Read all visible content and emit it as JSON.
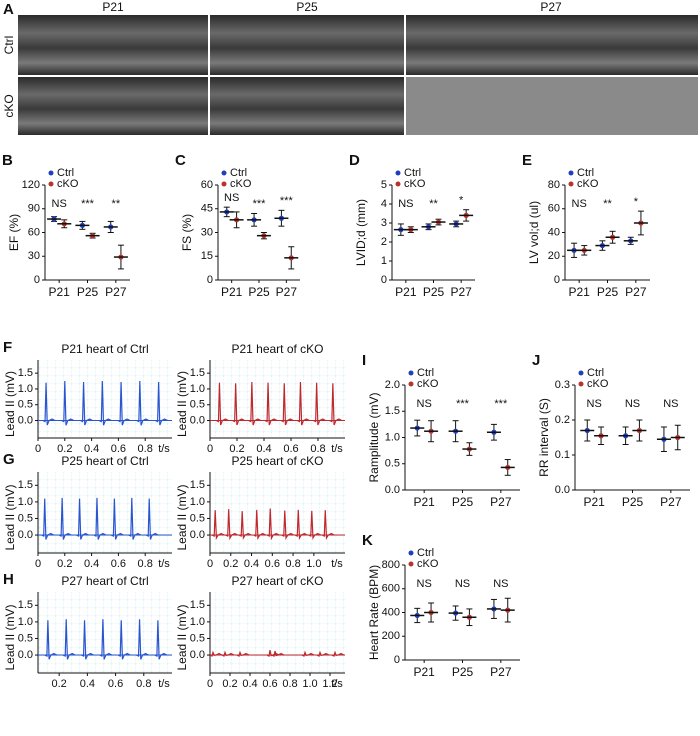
{
  "panel_a": {
    "letter": "A",
    "columns": [
      "P21",
      "P25",
      "P27"
    ],
    "rows": [
      "Ctrl",
      "cKO"
    ]
  },
  "chart_data": [
    {
      "type": "dotplot",
      "panel": "B",
      "ylabel": "EF (%)",
      "categories": [
        "P21",
        "P25",
        "P27"
      ],
      "ylim": [
        0,
        120
      ],
      "yticks": [
        0,
        30,
        60,
        90,
        120
      ],
      "series": [
        {
          "name": "Ctrl",
          "color": "#1f3fbf",
          "values": [
            77,
            69,
            67
          ],
          "errors": [
            3,
            5,
            7
          ]
        },
        {
          "name": "cKO",
          "color": "#b8332b",
          "values": [
            71,
            56,
            29
          ],
          "errors": [
            5,
            3,
            15
          ]
        }
      ],
      "annotations": [
        "NS",
        "***",
        "**"
      ]
    },
    {
      "type": "dotplot",
      "panel": "C",
      "ylabel": "FS (%)",
      "categories": [
        "P21",
        "P25",
        "P27"
      ],
      "ylim": [
        0,
        60
      ],
      "yticks": [
        0,
        15,
        30,
        45,
        60
      ],
      "series": [
        {
          "name": "Ctrl",
          "color": "#1f3fbf",
          "values": [
            43,
            38,
            39
          ],
          "errors": [
            3,
            4,
            5
          ]
        },
        {
          "name": "cKO",
          "color": "#b8332b",
          "values": [
            38,
            28,
            14
          ],
          "errors": [
            5,
            2,
            7
          ]
        }
      ],
      "annotations": [
        "NS",
        "***",
        "***"
      ]
    },
    {
      "type": "dotplot",
      "panel": "D",
      "ylabel": "LVID;d (mm)",
      "categories": [
        "P21",
        "P25",
        "P27"
      ],
      "ylim": [
        0,
        5
      ],
      "yticks": [
        0,
        1,
        2,
        3,
        4,
        5
      ],
      "series": [
        {
          "name": "Ctrl",
          "color": "#1f3fbf",
          "values": [
            2.65,
            2.8,
            2.95
          ],
          "errors": [
            0.3,
            0.15,
            0.15
          ]
        },
        {
          "name": "cKO",
          "color": "#b8332b",
          "values": [
            2.65,
            3.05,
            3.4
          ],
          "errors": [
            0.15,
            0.15,
            0.3
          ]
        }
      ],
      "annotations": [
        "NS",
        "**",
        "*"
      ]
    },
    {
      "type": "dotplot",
      "panel": "E",
      "ylabel": "LV vol;d (ul)",
      "categories": [
        "P21",
        "P25",
        "P27"
      ],
      "ylim": [
        0,
        80
      ],
      "yticks": [
        0,
        20,
        40,
        60,
        80
      ],
      "series": [
        {
          "name": "Ctrl",
          "color": "#1f3fbf",
          "values": [
            25,
            29,
            33
          ],
          "errors": [
            6,
            4,
            3
          ]
        },
        {
          "name": "cKO",
          "color": "#b8332b",
          "values": [
            25,
            36,
            48
          ],
          "errors": [
            4,
            5,
            10
          ]
        }
      ],
      "annotations": [
        "NS",
        "**",
        "*"
      ]
    },
    {
      "type": "ecg",
      "panel": "F",
      "title": "P21 heart of Ctrl",
      "ylabel": "Lead II (mV)",
      "xlabel": "t/s",
      "color": "#2a55d0",
      "xlim": [
        0,
        1.0
      ],
      "xticks": [
        0,
        0.2,
        0.4,
        0.6,
        0.8
      ],
      "ylim": [
        -0.3,
        1.6
      ],
      "yticks": [
        {
          "value": 0,
          "label": "0.0"
        },
        0.5,
        {
          "value": 1,
          "label": "1.0"
        },
        1.5
      ],
      "x": [
        0.06,
        0.2,
        0.34,
        0.48,
        0.62,
        0.76,
        0.9
      ],
      "values": [
        1.2,
        1.25,
        1.22,
        1.25,
        1.22,
        1.25,
        1.22
      ]
    },
    {
      "type": "ecg",
      "title": "P21 heart of cKO",
      "ylabel": "Lead II (mV)",
      "xlabel": "t/s",
      "color": "#c0282d",
      "xlim": [
        0,
        1.0
      ],
      "xticks": [
        0,
        0.2,
        0.4,
        0.6,
        0.8
      ],
      "ylim": [
        -0.3,
        1.6
      ],
      "yticks": [
        {
          "value": 0,
          "label": "0.0"
        },
        0.5,
        {
          "value": 1,
          "label": "1.0"
        },
        1.5
      ],
      "x": [
        0.07,
        0.19,
        0.31,
        0.43,
        0.55,
        0.67,
        0.79,
        0.91
      ],
      "values": [
        1.2,
        1.18,
        1.22,
        1.2,
        1.18,
        1.22,
        1.2,
        1.18
      ]
    },
    {
      "type": "ecg",
      "panel": "G",
      "title": "P25 heart of Ctrl",
      "ylabel": "Lead II (mV)",
      "xlabel": "t/s",
      "color": "#2a55d0",
      "xlim": [
        0,
        1.0
      ],
      "xticks": [
        0,
        0.2,
        0.4,
        0.6,
        0.8
      ],
      "ylim": [
        -0.3,
        1.6
      ],
      "yticks": [
        {
          "value": 0,
          "label": "0.0"
        },
        0.5,
        {
          "value": 1,
          "label": "1.0"
        },
        1.5
      ],
      "x": [
        0.05,
        0.18,
        0.31,
        0.44,
        0.57,
        0.7,
        0.83
      ],
      "values": [
        1.1,
        1.12,
        1.1,
        1.12,
        1.1,
        1.12,
        1.1
      ]
    },
    {
      "type": "ecg",
      "title": "P25 heart of cKO",
      "ylabel": "Lead II (mV)",
      "xlabel": "t/s",
      "color": "#c0282d",
      "xlim": [
        0,
        1.3
      ],
      "xticks": [
        0,
        0.2,
        0.4,
        0.6,
        0.8,
        {
          "value": 1,
          "label": "1.0"
        }
      ],
      "ylim": [
        -0.3,
        1.6
      ],
      "yticks": [
        {
          "value": 0,
          "label": "0.0"
        },
        0.5,
        {
          "value": 1,
          "label": "1.0"
        },
        1.5
      ],
      "x": [
        0.05,
        0.18,
        0.31,
        0.45,
        0.58,
        0.72,
        0.85,
        0.98,
        1.11
      ],
      "values": [
        0.75,
        0.78,
        0.72,
        0.76,
        0.8,
        0.74,
        0.76,
        0.73,
        0.75
      ]
    },
    {
      "type": "ecg",
      "panel": "H",
      "title": "P27 heart of Ctrl",
      "ylabel": "Lead II (mV)",
      "xlabel": "t/s",
      "color": "#2a55d0",
      "xlim": [
        0.05,
        1.0
      ],
      "xticks": [
        0.2,
        0.4,
        0.6,
        0.8
      ],
      "ylim": [
        -0.3,
        1.6
      ],
      "yticks": [
        {
          "value": 0,
          "label": "0.0"
        },
        0.5,
        {
          "value": 1,
          "label": "1.0"
        },
        1.5
      ],
      "x": [
        0.12,
        0.25,
        0.38,
        0.51,
        0.64,
        0.77,
        0.9
      ],
      "values": [
        1.05,
        1.08,
        1.05,
        1.08,
        1.05,
        1.08,
        1.05
      ]
    },
    {
      "type": "ecg",
      "title": "P27 heart of cKO",
      "ylabel": "Lead II (mV)",
      "xlabel": "t/s",
      "color": "#c0282d",
      "xlim": [
        0,
        1.35
      ],
      "xticks": [
        0,
        0.2,
        0.4,
        0.6,
        0.8,
        {
          "value": 1,
          "label": "1.0"
        },
        1.2
      ],
      "ylim": [
        -0.3,
        1.6
      ],
      "yticks": [
        {
          "value": 0,
          "label": "0.0"
        },
        0.5,
        {
          "value": 1,
          "label": "1.0"
        },
        1.5
      ],
      "x": [
        0.03,
        0.15,
        0.3,
        0.6,
        0.65,
        0.95,
        1.1,
        1.25
      ],
      "values": [
        0.08,
        0.08,
        0.08,
        0.15,
        0.12,
        0.08,
        0.08,
        0.08
      ]
    },
    {
      "type": "dotplot",
      "panel": "I",
      "ylabel": "Ramplitude (mV)",
      "categories": [
        "P21",
        "P25",
        "P27"
      ],
      "ylim": [
        0,
        2
      ],
      "yticks": [
        {
          "value": 0,
          "label": "0.0"
        },
        0.5,
        {
          "value": 1,
          "label": "1.0"
        },
        1.5,
        {
          "value": 2,
          "label": "2.0"
        }
      ],
      "series": [
        {
          "name": "Ctrl",
          "color": "#1f3fbf",
          "values": [
            1.18,
            1.12,
            1.1
          ],
          "errors": [
            0.15,
            0.2,
            0.15
          ]
        },
        {
          "name": "cKO",
          "color": "#b8332b",
          "values": [
            1.12,
            0.78,
            0.43
          ],
          "errors": [
            0.2,
            0.12,
            0.15
          ]
        }
      ],
      "annotations": [
        "NS",
        "***",
        "***"
      ]
    },
    {
      "type": "dotplot",
      "panel": "J",
      "ylabel": "RR interval (S)",
      "categories": [
        "P21",
        "P25",
        "P27"
      ],
      "ylim": [
        0,
        0.3
      ],
      "yticks": [
        {
          "value": 0,
          "label": "0.0"
        },
        0.1,
        0.2,
        0.3
      ],
      "series": [
        {
          "name": "Ctrl",
          "color": "#1f3fbf",
          "values": [
            0.17,
            0.155,
            0.145
          ],
          "errors": [
            0.03,
            0.025,
            0.035
          ]
        },
        {
          "name": "cKO",
          "color": "#b8332b",
          "values": [
            0.155,
            0.17,
            0.15
          ],
          "errors": [
            0.025,
            0.03,
            0.035
          ]
        }
      ],
      "annotations": [
        "NS",
        "NS",
        "NS"
      ]
    },
    {
      "type": "dotplot",
      "panel": "K",
      "ylabel": "Heart Rate (BPM)",
      "categories": [
        "P21",
        "P25",
        "P27"
      ],
      "ylim": [
        0,
        800
      ],
      "yticks": [
        0,
        200,
        400,
        600,
        800
      ],
      "series": [
        {
          "name": "Ctrl",
          "color": "#1f3fbf",
          "values": [
            375,
            395,
            430
          ],
          "errors": [
            60,
            60,
            80
          ]
        },
        {
          "name": "cKO",
          "color": "#b8332b",
          "values": [
            400,
            360,
            420
          ],
          "errors": [
            80,
            70,
            100
          ]
        }
      ],
      "annotations": [
        "NS",
        "NS",
        "NS"
      ]
    }
  ]
}
